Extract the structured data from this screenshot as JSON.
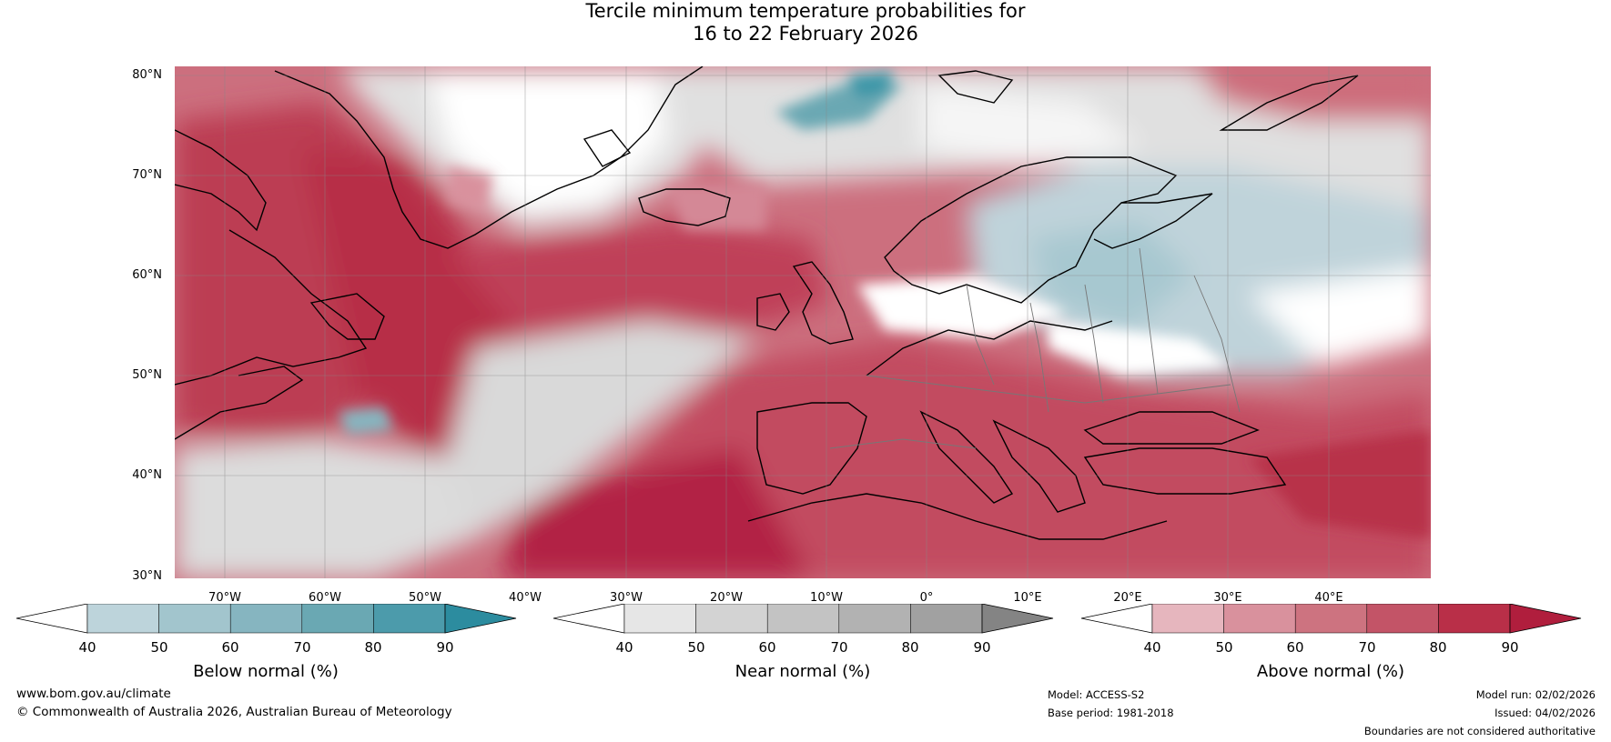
{
  "title": {
    "line1": "Tercile minimum temperature probabilities for",
    "line2": "16 to 22 February 2026"
  },
  "map": {
    "lat_labels": [
      "80°N",
      "70°N",
      "60°N",
      "50°N",
      "40°N",
      "30°N"
    ],
    "lon_labels": [
      "70°W",
      "60°W",
      "50°W",
      "40°W",
      "30°W",
      "20°W",
      "10°W",
      "0°",
      "10°E",
      "20°E",
      "30°E",
      "40°E"
    ],
    "lat_range": [
      30,
      81
    ],
    "lon_range": [
      -78,
      47
    ]
  },
  "colorbars": [
    {
      "label": "Below normal (%)",
      "ticks": [
        "40",
        "50",
        "60",
        "70",
        "80",
        "90"
      ],
      "colors": [
        "#bdd4db",
        "#a2c5cd",
        "#86b5c0",
        "#6aa8b3",
        "#4c9bab",
        "#2c8c9f"
      ]
    },
    {
      "label": "Near normal (%)",
      "ticks": [
        "40",
        "50",
        "60",
        "70",
        "80",
        "90"
      ],
      "colors": [
        "#e6e6e6",
        "#d3d3d3",
        "#c3c3c3",
        "#b2b2b2",
        "#a1a1a1",
        "#848484"
      ]
    },
    {
      "label": "Above normal (%)",
      "ticks": [
        "40",
        "50",
        "60",
        "70",
        "80",
        "90"
      ],
      "colors": [
        "#e6b6be",
        "#d9919d",
        "#cd7380",
        "#c35467",
        "#b92f48",
        "#b01e3d"
      ]
    }
  ],
  "footer": {
    "website": "www.bom.gov.au/climate",
    "copyright": "© Commonwealth of Australia 2026, Australian Bureau of Meteorology",
    "model": "Model: ACCESS-S2",
    "base_period": "Base period: 1981-2018",
    "model_run": "Model run: 02/02/2026",
    "issued": "Issued: 04/02/2026",
    "disclaimer": "Boundaries are not considered authoritative"
  }
}
